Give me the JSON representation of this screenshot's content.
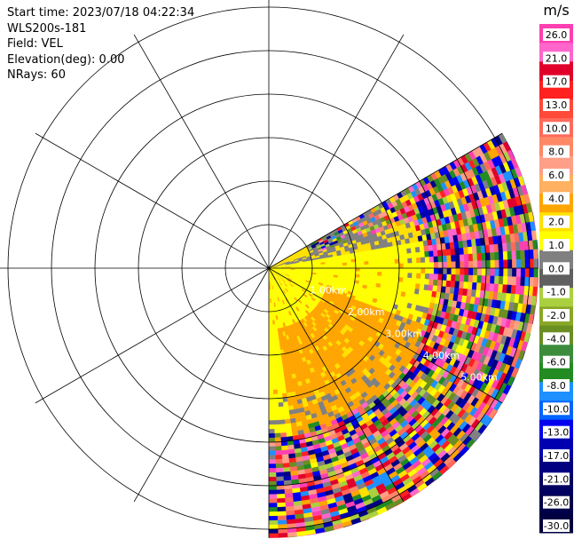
{
  "info": {
    "start_time": "Start time: 2023/07/18 04:22:34",
    "instrument": "WLS200s-181",
    "field": "Field: VEL",
    "elevation": "Elevation(deg): 0.00",
    "nrays": "NRays: 60"
  },
  "chart_data": {
    "type": "heatmap",
    "projection": "polar-ppi",
    "field": "VEL",
    "units": "m/s",
    "sector_azimuth_deg": [
      60,
      180
    ],
    "range_ring_labels": [
      "1.00km",
      "2.00km",
      "3.00km",
      "4.00km",
      "5.00km"
    ],
    "range_rings_km": [
      1,
      2,
      3,
      4,
      5,
      6
    ],
    "spokes_deg": [
      0,
      30,
      60,
      90,
      120,
      150,
      180,
      210,
      240,
      270,
      300,
      330
    ],
    "colorbar": {
      "label": "m/s",
      "ticks": [
        "26.0",
        "21.0",
        "17.0",
        "13.0",
        "10.0",
        "8.0",
        "6.0",
        "4.0",
        "2.0",
        "1.0",
        "0.0",
        "-1.0",
        "-2.0",
        "-4.0",
        "-6.0",
        "-8.0",
        "-10.0",
        "-13.0",
        "-17.0",
        "-21.0",
        "-26.0",
        "-30.0"
      ],
      "colors": [
        "#ff3fb0",
        "#ff66cc",
        "#e0002a",
        "#ff2020",
        "#ff4a3a",
        "#ff6a5a",
        "#ff8866",
        "#ff9f88",
        "#ffb060",
        "#ffa500",
        "#ffe000",
        "#ffff00",
        "#808080",
        "#606060",
        "#aad040",
        "#8aa828",
        "#6b8e23",
        "#3c8c3c",
        "#228b22",
        "#1e90ff",
        "#0066ff",
        "#0000ee",
        "#0000b0",
        "#000080",
        "#000060",
        "#00004a",
        "#000040"
      ]
    }
  }
}
